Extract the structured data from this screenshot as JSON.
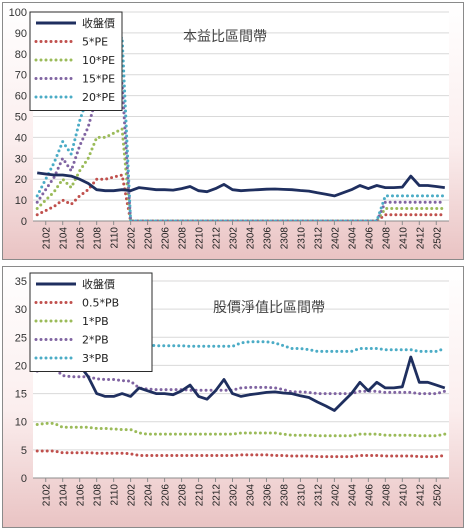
{
  "x_ticks": [
    "2102",
    "2104",
    "2106",
    "2108",
    "2110",
    "2202",
    "2204",
    "2206",
    "2208",
    "2210",
    "2212",
    "2302",
    "2304",
    "2306",
    "2308",
    "2310",
    "2312",
    "2402",
    "2404",
    "2406",
    "2408",
    "2410",
    "2412",
    "2502"
  ],
  "chart_data": [
    {
      "type": "line",
      "title": "本益比區間帶",
      "ylim": [
        0,
        100
      ],
      "y_ticks": [
        0,
        10,
        20,
        30,
        40,
        50,
        60,
        70,
        80,
        90,
        100
      ],
      "grid": true,
      "legend": "top-left",
      "n_points": 49,
      "series": [
        {
          "name": "收盤價",
          "color": "#1f2f5f",
          "style": "solid",
          "values": [
            23,
            22.5,
            22,
            22,
            21.5,
            20,
            18,
            15,
            14.5,
            14.5,
            15,
            14.5,
            16,
            15.5,
            15,
            15,
            14.8,
            15.5,
            16.5,
            14.5,
            14,
            15.5,
            17.5,
            15,
            14.5,
            14.8,
            15,
            15.2,
            15.3,
            15.1,
            15,
            14.6,
            14.3,
            13.5,
            12.8,
            12,
            13.5,
            15,
            17,
            15.5,
            17,
            16,
            16,
            16.2,
            21.5,
            17,
            17,
            16.5,
            16
          ]
        },
        {
          "name": "5*PE",
          "color": "#c0504d",
          "style": "dotted",
          "values": [
            3,
            5,
            7,
            10,
            8,
            12,
            15,
            20,
            20,
            21,
            22,
            0,
            0,
            0,
            0,
            0,
            0,
            0,
            0,
            0,
            0,
            0,
            0,
            0,
            0,
            0,
            0,
            0,
            0,
            0,
            0,
            0,
            0,
            0,
            0,
            0,
            0,
            0,
            0,
            0,
            0,
            3,
            3,
            3,
            3,
            3,
            3,
            3,
            3
          ]
        },
        {
          "name": "10*PE",
          "color": "#9bbb59",
          "style": "dotted",
          "values": [
            6,
            10,
            14,
            20,
            16,
            24,
            30,
            40,
            40,
            42,
            44,
            0,
            0,
            0,
            0,
            0,
            0,
            0,
            0,
            0,
            0,
            0,
            0,
            0,
            0,
            0,
            0,
            0,
            0,
            0,
            0,
            0,
            0,
            0,
            0,
            0,
            0,
            0,
            0,
            0,
            0,
            6,
            6,
            6,
            6,
            6,
            6,
            6,
            6
          ]
        },
        {
          "name": "15*PE",
          "color": "#8064a2",
          "style": "dotted",
          "values": [
            9,
            15,
            21,
            30,
            24,
            36,
            45,
            60,
            60,
            63,
            66,
            0,
            0,
            0,
            0,
            0,
            0,
            0,
            0,
            0,
            0,
            0,
            0,
            0,
            0,
            0,
            0,
            0,
            0,
            0,
            0,
            0,
            0,
            0,
            0,
            0,
            0,
            0,
            0,
            0,
            0,
            9,
            9,
            9,
            9,
            9,
            9,
            9,
            9
          ]
        },
        {
          "name": "20*PE",
          "color": "#4bacc6",
          "style": "dotted",
          "values": [
            12,
            20,
            28,
            38,
            32,
            48,
            60,
            80,
            80,
            84,
            88,
            0,
            0,
            0,
            0,
            0,
            0,
            0,
            0,
            0,
            0,
            0,
            0,
            0,
            0,
            0,
            0,
            0,
            0,
            0,
            0,
            0,
            0,
            0,
            0,
            0,
            0,
            0,
            0,
            0,
            0,
            12,
            12,
            12,
            12,
            12,
            12,
            12,
            12
          ]
        }
      ]
    },
    {
      "type": "line",
      "title": "股價淨值比區間帶",
      "ylim": [
        0,
        35
      ],
      "y_ticks": [
        0,
        5,
        10,
        15,
        20,
        25,
        30,
        35
      ],
      "grid": true,
      "legend": "top-left",
      "n_points": 49,
      "series": [
        {
          "name": "收盤價",
          "color": "#1f2f5f",
          "style": "solid",
          "values": [
            23,
            22.5,
            22,
            22,
            21.5,
            20,
            18,
            15,
            14.5,
            14.5,
            15,
            14.5,
            16,
            15.5,
            15,
            15,
            14.8,
            15.5,
            16.5,
            14.5,
            14,
            15.5,
            17.5,
            15,
            14.5,
            14.8,
            15,
            15.2,
            15.3,
            15.1,
            15,
            14.6,
            14.3,
            13.5,
            12.8,
            12,
            13.5,
            15,
            17,
            15.5,
            17,
            16,
            16,
            16.2,
            21.5,
            17,
            17,
            16.5,
            16
          ]
        },
        {
          "name": "0.5*PB",
          "color": "#c0504d",
          "style": "dotted",
          "values": [
            4.8,
            4.8,
            4.8,
            4.5,
            4.5,
            4.5,
            4.5,
            4.4,
            4.4,
            4.4,
            4.4,
            4.3,
            4.0,
            4.0,
            4.0,
            4.0,
            4.0,
            4.0,
            4.0,
            4.0,
            4.0,
            4.0,
            4.0,
            4.0,
            4.1,
            4.1,
            4.1,
            4.1,
            4.0,
            4.0,
            3.9,
            3.9,
            3.9,
            3.8,
            3.8,
            3.8,
            3.8,
            3.8,
            4.0,
            4.0,
            4.0,
            3.9,
            3.9,
            3.9,
            3.9,
            3.8,
            3.8,
            3.8,
            4.0
          ]
        },
        {
          "name": "1*PB",
          "color": "#9bbb59",
          "style": "dotted",
          "values": [
            9.5,
            9.7,
            9.7,
            9.0,
            9.0,
            9.0,
            9.0,
            8.8,
            8.8,
            8.7,
            8.6,
            8.6,
            8.0,
            7.8,
            7.8,
            7.8,
            7.8,
            7.8,
            7.8,
            7.8,
            7.8,
            7.8,
            7.8,
            7.8,
            8.0,
            8.0,
            8.0,
            8.0,
            8.0,
            7.8,
            7.6,
            7.6,
            7.6,
            7.5,
            7.5,
            7.5,
            7.5,
            7.5,
            7.8,
            7.8,
            7.8,
            7.6,
            7.6,
            7.6,
            7.6,
            7.5,
            7.5,
            7.5,
            7.8
          ]
        },
        {
          "name": "2*PB",
          "color": "#8064a2",
          "style": "dotted",
          "values": [
            19,
            19.5,
            19.5,
            18.2,
            18,
            18,
            18,
            17.6,
            17.5,
            17.5,
            17.3,
            17.2,
            16,
            15.8,
            15.7,
            15.7,
            15.7,
            15.7,
            15.6,
            15.6,
            15.6,
            15.6,
            15.6,
            15.6,
            16,
            16.1,
            16.1,
            16.1,
            16,
            15.7,
            15.3,
            15.3,
            15.2,
            15.0,
            15.0,
            15.0,
            15.0,
            15.0,
            15.4,
            15.4,
            15.4,
            15.2,
            15.2,
            15.2,
            15.2,
            15.0,
            15.0,
            15.0,
            15.4
          ]
        },
        {
          "name": "3*PB",
          "color": "#4bacc6",
          "style": "dotted",
          "values": [
            28,
            29,
            29.3,
            27.3,
            27,
            27,
            27,
            26.4,
            26.3,
            26.2,
            26,
            25.8,
            24,
            23.6,
            23.5,
            23.5,
            23.5,
            23.5,
            23.4,
            23.4,
            23.4,
            23.4,
            23.4,
            23.4,
            24,
            24.2,
            24.2,
            24.2,
            24,
            23.5,
            23,
            23,
            22.8,
            22.5,
            22.5,
            22.5,
            22.5,
            22.5,
            23,
            23,
            23,
            22.8,
            22.8,
            22.8,
            22.8,
            22.5,
            22.5,
            22.5,
            23
          ]
        }
      ]
    }
  ]
}
